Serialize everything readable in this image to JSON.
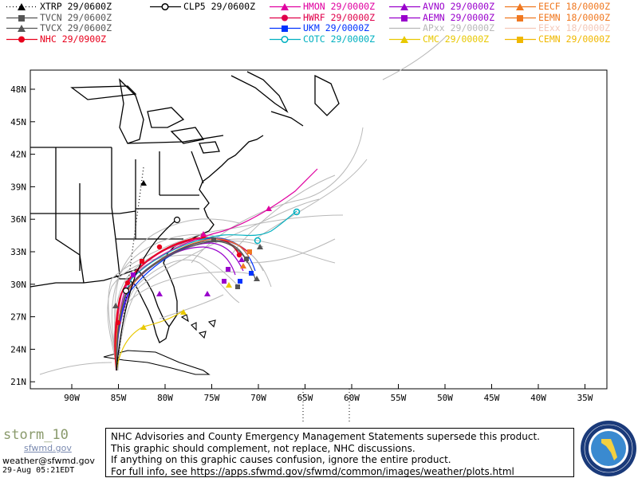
{
  "legend": [
    {
      "label": "XTRP 29/0600Z",
      "color": "#000000",
      "marker": "triangle",
      "dash": "1,3"
    },
    {
      "label": "TVCN 29/0600Z",
      "color": "#555555",
      "marker": "square",
      "dash": ""
    },
    {
      "label": "TVCX 29/0600Z",
      "color": "#555555",
      "marker": "triangle",
      "dash": ""
    },
    {
      "label": "NHC 29/0900Z",
      "color": "#e8001c",
      "marker": "circle",
      "dash": ""
    },
    {
      "label": "CLP5 29/0600Z",
      "color": "#000000",
      "marker": "ring",
      "dash": ""
    },
    {
      "label": "HMON 29/0000Z",
      "color": "#e000a0",
      "marker": "triangle",
      "dash": ""
    },
    {
      "label": "HWRF 29/0000Z",
      "color": "#e0004a",
      "marker": "circle",
      "dash": ""
    },
    {
      "label": "UKM 29/0000Z",
      "color": "#0033ff",
      "marker": "square",
      "dash": ""
    },
    {
      "label": "COTC 29/0000Z",
      "color": "#00b0c0",
      "marker": "ring",
      "dash": ""
    },
    {
      "label": "AVNO 29/0000Z",
      "color": "#9900cc",
      "marker": "triangle",
      "dash": ""
    },
    {
      "label": "AEMN 29/0000Z",
      "color": "#9900cc",
      "marker": "square",
      "dash": ""
    },
    {
      "label": "APxx 29/0000Z",
      "color": "#b8b8b8",
      "marker": "none",
      "dash": ""
    },
    {
      "label": "CMC 29/0000Z",
      "color": "#e8c800",
      "marker": "triangle",
      "dash": ""
    },
    {
      "label": "EECF 18/0000Z",
      "color": "#f07820",
      "marker": "triangle",
      "dash": ""
    },
    {
      "label": "EEMN 18/0000Z",
      "color": "#f07820",
      "marker": "square",
      "dash": ""
    },
    {
      "label": "EExx 18/0000Z",
      "color": "#f4c8b8",
      "marker": "none",
      "dash": ""
    },
    {
      "label": "CEMN 29/0000Z",
      "color": "#f0b800",
      "marker": "square",
      "dash": ""
    }
  ],
  "map": {
    "lat_labels": [
      "48N",
      "45N",
      "42N",
      "39N",
      "36N",
      "33N",
      "30N",
      "27N",
      "24N",
      "21N"
    ],
    "lon_labels": [
      "90W",
      "85W",
      "80W",
      "75W",
      "70W",
      "65W",
      "60W",
      "55W",
      "50W",
      "45W",
      "40W",
      "35W"
    ]
  },
  "footer": {
    "logo_text": "storm_10",
    "logo_sub": "sfwmd.gov",
    "email": "weather@sfwmd.gov",
    "date": "29-Aug 05:21EDT",
    "disclaimer": [
      "NHC Advisories and County Emergency Management Statements supersede this product.",
      "This graphic should complement, not replace, NHC discussions.",
      "If anything on this graphic causes confusion, ignore the entire product.",
      "For full info, see  https://apps.sfwmd.gov/sfwmd/common/images/weather/plots.html"
    ],
    "seal_text": "SOUTH FLORIDA WATER MANAGEMENT DISTRICT"
  }
}
